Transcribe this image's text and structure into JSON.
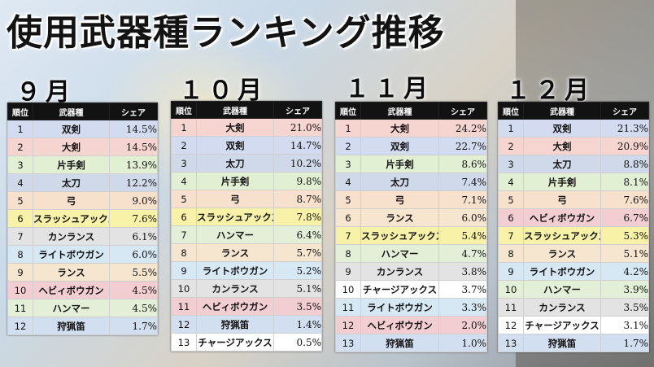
{
  "title": "使用武器種ランキング推移",
  "header": {
    "rank": "順位",
    "weapon": "武器種",
    "share": "シェア"
  },
  "colors": {
    "大剣": "#f6d4cf",
    "双剣": "#d3dbf0",
    "太刀": "#cfd9e9",
    "片手剣": "#e1efd2",
    "弓": "#f7e0cc",
    "スラッシュアックス": "#f8f2a8",
    "カンランス": "#e3e3e3",
    "ライトボウガン": "#d6e8f3",
    "ランス": "#f7e6cf",
    "ヘビィボウガン": "#f2cdd1",
    "ハンマー": "#e3efd6",
    "狩猟笛": "#d2dff0",
    "チャージアックス": "#ffffff"
  },
  "chart_data": [
    {
      "type": "table",
      "month": "９月",
      "rows": [
        {
          "rank": "1",
          "weapon": "双剣",
          "share": "14.5%"
        },
        {
          "rank": "2",
          "weapon": "大剣",
          "share": "14.5%"
        },
        {
          "rank": "3",
          "weapon": "片手剣",
          "share": "13.9%"
        },
        {
          "rank": "4",
          "weapon": "太刀",
          "share": "12.2%"
        },
        {
          "rank": "5",
          "weapon": "弓",
          "share": "9.0%"
        },
        {
          "rank": "6",
          "weapon": "スラッシュアックス",
          "share": "7.6%"
        },
        {
          "rank": "7",
          "weapon": "カンランス",
          "share": "6.1%"
        },
        {
          "rank": "8",
          "weapon": "ライトボウガン",
          "share": "6.0%"
        },
        {
          "rank": "9",
          "weapon": "ランス",
          "share": "5.5%"
        },
        {
          "rank": "10",
          "weapon": "ヘビィボウガン",
          "share": "4.5%"
        },
        {
          "rank": "11",
          "weapon": "ハンマー",
          "share": "4.5%"
        },
        {
          "rank": "12",
          "weapon": "狩猟笛",
          "share": "1.7%"
        }
      ]
    },
    {
      "type": "table",
      "month": "１０月",
      "rows": [
        {
          "rank": "1",
          "weapon": "大剣",
          "share": "21.0%"
        },
        {
          "rank": "2",
          "weapon": "双剣",
          "share": "14.7%"
        },
        {
          "rank": "3",
          "weapon": "太刀",
          "share": "10.2%"
        },
        {
          "rank": "4",
          "weapon": "片手剣",
          "share": "9.8%"
        },
        {
          "rank": "5",
          "weapon": "弓",
          "share": "8.7%"
        },
        {
          "rank": "6",
          "weapon": "スラッシュアックス",
          "share": "7.8%"
        },
        {
          "rank": "7",
          "weapon": "ハンマー",
          "share": "6.4%"
        },
        {
          "rank": "8",
          "weapon": "ランス",
          "share": "5.7%"
        },
        {
          "rank": "9",
          "weapon": "ライトボウガン",
          "share": "5.2%"
        },
        {
          "rank": "10",
          "weapon": "カンランス",
          "share": "5.1%"
        },
        {
          "rank": "11",
          "weapon": "ヘビィボウガン",
          "share": "3.5%"
        },
        {
          "rank": "12",
          "weapon": "狩猟笛",
          "share": "1.4%"
        },
        {
          "rank": "13",
          "weapon": "チャージアックス",
          "share": "0.5%"
        }
      ]
    },
    {
      "type": "table",
      "month": "１１月",
      "rows": [
        {
          "rank": "1",
          "weapon": "大剣",
          "share": "24.2%"
        },
        {
          "rank": "2",
          "weapon": "双剣",
          "share": "22.7%"
        },
        {
          "rank": "3",
          "weapon": "片手剣",
          "share": "8.6%"
        },
        {
          "rank": "4",
          "weapon": "太刀",
          "share": "7.4%"
        },
        {
          "rank": "5",
          "weapon": "弓",
          "share": "7.1%"
        },
        {
          "rank": "6",
          "weapon": "ランス",
          "share": "6.0%"
        },
        {
          "rank": "7",
          "weapon": "スラッシュアックス",
          "share": "5.4%"
        },
        {
          "rank": "8",
          "weapon": "ハンマー",
          "share": "4.7%"
        },
        {
          "rank": "9",
          "weapon": "カンランス",
          "share": "3.8%"
        },
        {
          "rank": "10",
          "weapon": "チャージアックス",
          "share": "3.7%"
        },
        {
          "rank": "11",
          "weapon": "ライトボウガン",
          "share": "3.3%"
        },
        {
          "rank": "12",
          "weapon": "ヘビィボウガン",
          "share": "2.0%"
        },
        {
          "rank": "13",
          "weapon": "狩猟笛",
          "share": "1.0%"
        }
      ]
    },
    {
      "type": "table",
      "month": "１２月",
      "rows": [
        {
          "rank": "1",
          "weapon": "双剣",
          "share": "21.3%"
        },
        {
          "rank": "2",
          "weapon": "大剣",
          "share": "20.9%"
        },
        {
          "rank": "3",
          "weapon": "太刀",
          "share": "8.8%"
        },
        {
          "rank": "4",
          "weapon": "片手剣",
          "share": "8.1%"
        },
        {
          "rank": "5",
          "weapon": "弓",
          "share": "7.6%"
        },
        {
          "rank": "6",
          "weapon": "ヘビィボウガン",
          "share": "6.7%"
        },
        {
          "rank": "7",
          "weapon": "スラッシュアックス",
          "share": "5.3%"
        },
        {
          "rank": "8",
          "weapon": "ランス",
          "share": "5.1%"
        },
        {
          "rank": "9",
          "weapon": "ライトボウガン",
          "share": "4.2%"
        },
        {
          "rank": "10",
          "weapon": "ハンマー",
          "share": "3.9%"
        },
        {
          "rank": "11",
          "weapon": "カンランス",
          "share": "3.5%"
        },
        {
          "rank": "12",
          "weapon": "チャージアックス",
          "share": "3.1%"
        },
        {
          "rank": "13",
          "weapon": "狩猟笛",
          "share": "1.7%"
        }
      ]
    }
  ]
}
